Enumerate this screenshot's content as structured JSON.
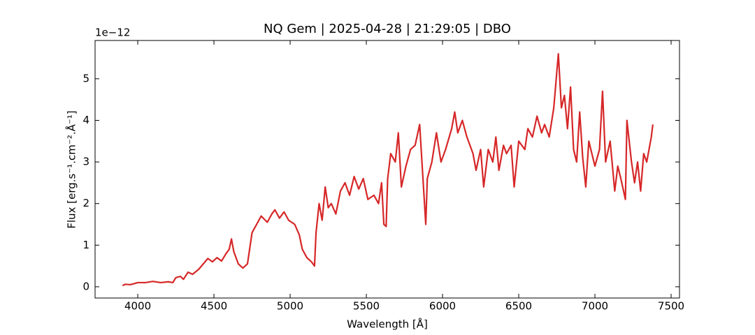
{
  "chart_data": {
    "type": "line",
    "title": "NQ Gem | 2025-04-28 | 21:29:05 | DBO",
    "xlabel": "Wavelength [Å]",
    "ylabel": "Flux [erg.s⁻¹.cm⁻².Å⁻¹]",
    "y_offset_label": "1e−12",
    "color": "#d62728",
    "xlim": [
      3720,
      7555
    ],
    "ylim": [
      -0.27,
      5.92
    ],
    "xticks": [
      4000,
      4500,
      5000,
      5500,
      6000,
      6500,
      7000,
      7500
    ],
    "yticks": [
      0,
      1,
      2,
      3,
      4,
      5
    ],
    "x": [
      3900,
      3920,
      3950,
      3980,
      4000,
      4050,
      4100,
      4150,
      4200,
      4230,
      4250,
      4280,
      4300,
      4330,
      4360,
      4400,
      4430,
      4460,
      4490,
      4520,
      4550,
      4580,
      4600,
      4615,
      4630,
      4660,
      4690,
      4720,
      4750,
      4780,
      4810,
      4850,
      4880,
      4900,
      4930,
      4960,
      4990,
      5030,
      5060,
      5080,
      5110,
      5140,
      5160,
      5170,
      5190,
      5210,
      5230,
      5250,
      5270,
      5300,
      5330,
      5360,
      5390,
      5420,
      5450,
      5480,
      5510,
      5550,
      5580,
      5600,
      5615,
      5630,
      5640,
      5660,
      5690,
      5710,
      5730,
      5760,
      5790,
      5820,
      5850,
      5870,
      5890,
      5900,
      5930,
      5960,
      5990,
      6020,
      6060,
      6080,
      6100,
      6130,
      6160,
      6200,
      6220,
      6250,
      6270,
      6300,
      6330,
      6350,
      6370,
      6400,
      6420,
      6450,
      6470,
      6500,
      6540,
      6560,
      6590,
      6620,
      6650,
      6670,
      6700,
      6730,
      6760,
      6780,
      6800,
      6820,
      6840,
      6860,
      6880,
      6900,
      6920,
      6940,
      6960,
      6980,
      7000,
      7030,
      7050,
      7070,
      7100,
      7130,
      7150,
      7170,
      7200,
      7210,
      7240,
      7260,
      7280,
      7300,
      7320,
      7340,
      7370,
      7380
    ],
    "values": [
      0.03,
      0.06,
      0.05,
      0.08,
      0.1,
      0.1,
      0.13,
      0.1,
      0.12,
      0.1,
      0.22,
      0.25,
      0.18,
      0.35,
      0.3,
      0.42,
      0.55,
      0.68,
      0.6,
      0.7,
      0.62,
      0.8,
      0.9,
      1.15,
      0.85,
      0.55,
      0.45,
      0.55,
      1.3,
      1.5,
      1.7,
      1.55,
      1.75,
      1.85,
      1.65,
      1.8,
      1.6,
      1.5,
      1.25,
      0.9,
      0.7,
      0.6,
      0.5,
      1.3,
      2.0,
      1.6,
      2.4,
      1.9,
      2.0,
      1.75,
      2.3,
      2.5,
      2.2,
      2.65,
      2.35,
      2.6,
      2.1,
      2.2,
      2.0,
      2.5,
      1.5,
      1.45,
      2.6,
      3.2,
      3.0,
      3.7,
      2.4,
      2.9,
      3.3,
      3.4,
      3.9,
      2.7,
      1.5,
      2.6,
      3.0,
      3.7,
      3.0,
      3.3,
      3.8,
      4.2,
      3.7,
      4.0,
      3.6,
      3.2,
      2.8,
      3.3,
      2.4,
      3.3,
      3.0,
      3.6,
      2.8,
      3.4,
      3.2,
      3.4,
      2.4,
      3.5,
      3.3,
      3.8,
      3.6,
      4.1,
      3.7,
      3.9,
      3.6,
      4.3,
      5.6,
      4.3,
      4.6,
      3.8,
      4.8,
      3.3,
      3.0,
      4.2,
      3.1,
      2.4,
      3.5,
      3.2,
      2.9,
      3.3,
      4.7,
      3.0,
      3.5,
      2.3,
      2.9,
      2.6,
      2.1,
      4.0,
      3.0,
      2.5,
      3.0,
      2.3,
      3.2,
      3.0,
      3.6,
      3.9
    ]
  }
}
